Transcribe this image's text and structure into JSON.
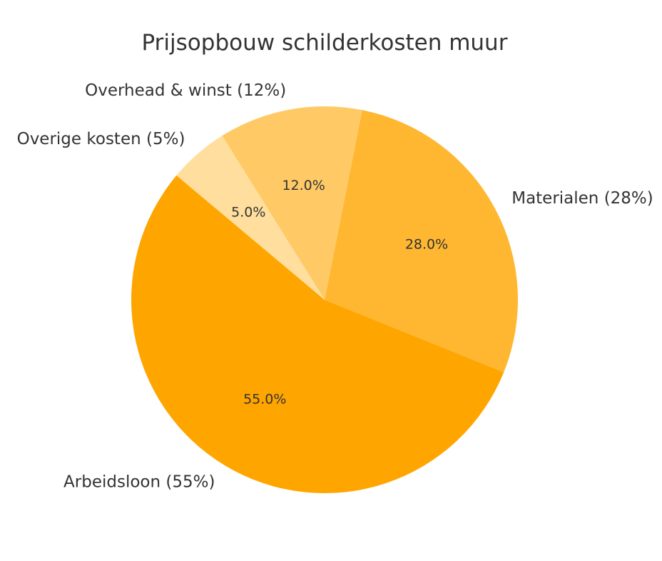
{
  "chart_data": {
    "type": "pie",
    "title": "Prijsopbouw schilderkosten muur",
    "start_angle_deg": 140,
    "direction": "counterclockwise",
    "slices": [
      {
        "label": "Arbeidsloon (55%)",
        "value": 55,
        "pct_label": "55.0%",
        "color": "#FFA500"
      },
      {
        "label": "Materialen (28%)",
        "value": 28,
        "pct_label": "28.0%",
        "color": "#FFB732"
      },
      {
        "label": "Overhead & winst (12%)",
        "value": 12,
        "pct_label": "12.0%",
        "color": "#FFCA66"
      },
      {
        "label": "Overige kosten (5%)",
        "value": 5,
        "pct_label": "5.0%",
        "color": "#FFDE9E"
      }
    ]
  }
}
